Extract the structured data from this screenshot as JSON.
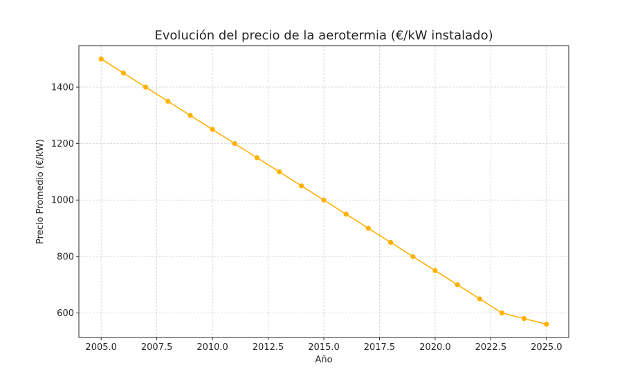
{
  "chart_data": {
    "type": "line",
    "title": "Evolución del precio de la aerotermia (€/kW instalado)",
    "xlabel": "Año",
    "ylabel": "Precio Promedio (€/kW)",
    "x": [
      2005,
      2006,
      2007,
      2008,
      2009,
      2010,
      2011,
      2012,
      2013,
      2014,
      2015,
      2016,
      2017,
      2018,
      2019,
      2020,
      2021,
      2022,
      2023,
      2024,
      2025
    ],
    "series": [
      {
        "values": [
          1500,
          1450,
          1400,
          1350,
          1300,
          1250,
          1200,
          1150,
          1100,
          1050,
          1000,
          950,
          900,
          850,
          800,
          750,
          700,
          650,
          600,
          580,
          560
        ],
        "color": "#FFB000"
      }
    ],
    "xlim": [
      2004,
      2026
    ],
    "ylim": [
      513,
      1547
    ],
    "xticks": [
      2005.0,
      2007.5,
      2010.0,
      2012.5,
      2015.0,
      2017.5,
      2020.0,
      2022.5,
      2025.0
    ],
    "xtick_labels": [
      "2005.0",
      "2007.5",
      "2010.0",
      "2012.5",
      "2015.0",
      "2017.5",
      "2020.0",
      "2022.5",
      "2025.0"
    ],
    "yticks": [
      600,
      800,
      1000,
      1200,
      1400
    ],
    "ytick_labels": [
      "600",
      "800",
      "1000",
      "1200",
      "1400"
    ],
    "grid": true,
    "marker": "circle"
  }
}
